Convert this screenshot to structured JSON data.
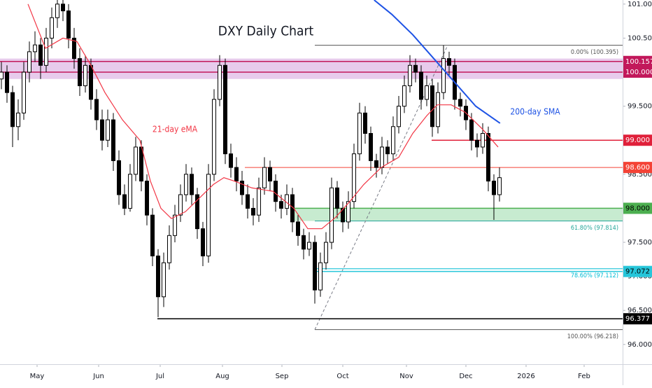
{
  "chart_data": {
    "type": "candlestick",
    "title": "DXY Daily Chart",
    "ylim": [
      95.71,
      101.06
    ],
    "xlim": [
      -0.25,
      111
    ],
    "yticks": [
      {
        "value": 101,
        "label": "101.000"
      },
      {
        "value": 100.5,
        "label": "100.500"
      },
      {
        "value": 99.5,
        "label": "99.500"
      },
      {
        "value": 98.5,
        "label": "98.500"
      },
      {
        "value": 97.5,
        "label": "97.500"
      },
      {
        "value": 97,
        "label": "97.000"
      },
      {
        "value": 96.5,
        "label": "96.500"
      },
      {
        "value": 96,
        "label": "96.000"
      }
    ],
    "xticks": [
      {
        "value": 6.375,
        "label": "May"
      },
      {
        "value": 17.375,
        "label": "Jun"
      },
      {
        "value": 28.375,
        "label": "Jul"
      },
      {
        "value": 39.5,
        "label": "Aug"
      },
      {
        "value": 50.125,
        "label": "Sep"
      },
      {
        "value": 61,
        "label": "Oct"
      },
      {
        "value": 72.375,
        "label": "Nov"
      },
      {
        "value": 83,
        "label": "Dec"
      },
      {
        "value": 93.75,
        "label": "2026"
      },
      {
        "value": 104.125,
        "label": "Feb"
      }
    ],
    "grid": false,
    "up_color": "#ffffff",
    "down_color": "#000000",
    "candles": [
      [
        99.9,
        100.15,
        99.75,
        100.0
      ],
      [
        100.0,
        100.1,
        99.55,
        99.7
      ],
      [
        99.7,
        99.8,
        98.9,
        99.2
      ],
      [
        99.2,
        99.6,
        99.0,
        99.4
      ],
      [
        99.4,
        100.15,
        99.3,
        100.0
      ],
      [
        100.0,
        100.45,
        99.85,
        100.3
      ],
      [
        100.3,
        100.6,
        100.15,
        100.4
      ],
      [
        100.4,
        100.5,
        99.9,
        100.1
      ],
      [
        100.1,
        100.65,
        100.0,
        100.5
      ],
      [
        100.5,
        100.95,
        100.35,
        100.8
      ],
      [
        100.8,
        101.2,
        100.65,
        101.0
      ],
      [
        101.0,
        101.1,
        100.75,
        100.9
      ],
      [
        100.9,
        101.0,
        100.35,
        100.5
      ],
      [
        100.5,
        100.65,
        100.05,
        100.2
      ],
      [
        100.2,
        100.35,
        99.65,
        99.8
      ],
      [
        99.8,
        100.25,
        99.7,
        100.1
      ],
      [
        100.1,
        100.2,
        99.45,
        99.6
      ],
      [
        99.6,
        99.75,
        99.15,
        99.3
      ],
      [
        99.3,
        99.45,
        98.85,
        99.0
      ],
      [
        99.0,
        99.45,
        98.9,
        99.3
      ],
      [
        99.3,
        99.4,
        98.55,
        98.7
      ],
      [
        98.7,
        98.85,
        98.05,
        98.2
      ],
      [
        98.2,
        98.35,
        97.9,
        98.0
      ],
      [
        98.0,
        98.65,
        97.95,
        98.5
      ],
      [
        98.5,
        99.05,
        98.4,
        98.9
      ],
      [
        98.9,
        99.0,
        98.25,
        98.4
      ],
      [
        98.4,
        98.5,
        97.75,
        97.9
      ],
      [
        97.9,
        98.0,
        97.15,
        97.3
      ],
      [
        97.3,
        97.4,
        96.4,
        96.7
      ],
      [
        96.7,
        97.35,
        96.55,
        97.2
      ],
      [
        97.2,
        97.75,
        97.1,
        97.6
      ],
      [
        97.6,
        98.05,
        97.5,
        97.9
      ],
      [
        97.9,
        98.35,
        97.8,
        98.2
      ],
      [
        98.2,
        98.65,
        98.1,
        98.5
      ],
      [
        98.5,
        98.6,
        98.05,
        98.2
      ],
      [
        98.2,
        98.3,
        97.55,
        97.7
      ],
      [
        97.7,
        97.8,
        97.15,
        97.3
      ],
      [
        97.3,
        98.65,
        97.2,
        98.5
      ],
      [
        98.5,
        99.75,
        98.4,
        99.6
      ],
      [
        99.6,
        100.25,
        99.5,
        100.1
      ],
      [
        100.1,
        100.2,
        98.65,
        98.8
      ],
      [
        98.8,
        98.95,
        98.45,
        98.6
      ],
      [
        98.6,
        98.75,
        98.25,
        98.4
      ],
      [
        98.4,
        98.55,
        98.05,
        98.2
      ],
      [
        98.2,
        98.35,
        97.85,
        98.0
      ],
      [
        98.0,
        98.15,
        97.75,
        97.9
      ],
      [
        97.9,
        98.45,
        97.8,
        98.3
      ],
      [
        98.3,
        98.75,
        98.2,
        98.6
      ],
      [
        98.6,
        98.7,
        98.25,
        98.4
      ],
      [
        98.4,
        98.5,
        97.95,
        98.1
      ],
      [
        98.1,
        98.2,
        97.85,
        98.0
      ],
      [
        98.0,
        98.35,
        97.9,
        98.2
      ],
      [
        98.2,
        98.3,
        97.65,
        97.8
      ],
      [
        97.8,
        97.9,
        97.45,
        97.6
      ],
      [
        97.6,
        97.7,
        97.25,
        97.4
      ],
      [
        97.4,
        97.65,
        97.3,
        97.5
      ],
      [
        97.5,
        97.6,
        96.6,
        96.8
      ],
      [
        96.8,
        97.35,
        96.7,
        97.2
      ],
      [
        97.2,
        97.65,
        97.1,
        97.5
      ],
      [
        97.5,
        98.45,
        97.4,
        98.3
      ],
      [
        98.3,
        98.4,
        97.85,
        98.0
      ],
      [
        98.0,
        98.1,
        97.65,
        97.8
      ],
      [
        97.8,
        98.25,
        97.7,
        98.1
      ],
      [
        98.1,
        98.95,
        98.0,
        98.8
      ],
      [
        98.8,
        99.55,
        98.7,
        99.4
      ],
      [
        99.4,
        99.5,
        98.95,
        99.1
      ],
      [
        99.1,
        99.2,
        98.55,
        98.7
      ],
      [
        98.7,
        98.8,
        98.45,
        98.6
      ],
      [
        98.6,
        99.05,
        98.5,
        98.9
      ],
      [
        98.9,
        99.0,
        98.65,
        98.8
      ],
      [
        98.8,
        99.35,
        98.7,
        99.2
      ],
      [
        99.2,
        99.65,
        99.1,
        99.5
      ],
      [
        99.5,
        99.95,
        99.4,
        99.8
      ],
      [
        99.8,
        100.25,
        99.7,
        100.1
      ],
      [
        100.1,
        100.2,
        99.85,
        100.0
      ],
      [
        100.0,
        100.1,
        99.45,
        99.6
      ],
      [
        99.6,
        99.95,
        99.5,
        99.8
      ],
      [
        99.8,
        99.9,
        99.05,
        99.2
      ],
      [
        99.2,
        99.85,
        99.1,
        99.7
      ],
      [
        99.7,
        100.395,
        99.6,
        100.2
      ],
      [
        100.2,
        100.3,
        99.95,
        100.1
      ],
      [
        100.1,
        100.2,
        99.45,
        99.6
      ],
      [
        99.6,
        99.7,
        99.35,
        99.5
      ],
      [
        99.5,
        99.6,
        99.15,
        99.3
      ],
      [
        99.3,
        99.4,
        98.85,
        99.0
      ],
      [
        99.0,
        99.1,
        98.75,
        98.9
      ],
      [
        98.9,
        99.25,
        98.8,
        99.1
      ],
      [
        99.1,
        99.2,
        98.25,
        98.4
      ],
      [
        98.4,
        98.5,
        97.83,
        98.2
      ],
      [
        98.2,
        98.6,
        98.1,
        98.45
      ]
    ],
    "series": [
      {
        "name": "21-day eMA",
        "color": "#f23645",
        "x": [
          4.75,
          7.875,
          11,
          13.5,
          16,
          18.5,
          21.625,
          24.75,
          26.625,
          28.5,
          30.375,
          32.875,
          35.375,
          37.875,
          39.75,
          41.625,
          44.75,
          48.5,
          52.25,
          54.75,
          57.25,
          59.75,
          62.25,
          64.75,
          67.875,
          71,
          73.5,
          76,
          77.875,
          80.375,
          82.875,
          86,
          88.75
        ],
        "values": [
          101.0,
          100.35,
          100.5,
          100.45,
          100.1,
          99.7,
          99.3,
          99.0,
          98.4,
          98.0,
          97.85,
          97.95,
          98.15,
          98.35,
          98.45,
          98.4,
          98.3,
          98.25,
          98.0,
          97.7,
          97.7,
          97.87,
          98.1,
          98.35,
          98.6,
          98.75,
          99.1,
          99.36,
          99.52,
          99.52,
          99.41,
          99.16,
          98.9
        ]
      },
      {
        "name": "200-day SMA",
        "color": "#1e53e5",
        "x": [
          66.6,
          69.75,
          73.5,
          77.25,
          81,
          84.75,
          89.1
        ],
        "values": [
          101.06,
          100.85,
          100.55,
          100.2,
          99.85,
          99.5,
          99.25
        ]
      }
    ],
    "zones": [
      {
        "low": 99.9,
        "high": 100.2,
        "color": "#e1bee7"
      },
      {
        "low": 97.814,
        "high": 98.0,
        "color": "#b9e6c4"
      }
    ],
    "levels": [
      {
        "value": 100.157,
        "color": "#c2185b",
        "text_color": "#ffffff"
      },
      {
        "value": {
          "value": 100,
          "label": "100.000"
        },
        "color": "#c2185b",
        "text_color": "#ffffff"
      },
      {
        "value": {
          "value": 99,
          "label": "99.000"
        },
        "color": "#e0203a",
        "text_color": "#ffffff"
      },
      {
        "value": {
          "value": 98.6,
          "label": "98.600"
        },
        "color": "#f44336",
        "text_color": "#ffffff"
      },
      {
        "value": {
          "value": 98,
          "label": "98.000"
        },
        "color": "#4caf50",
        "text_color": "#000000"
      },
      {
        "value": 97.072,
        "color": "#26c6da",
        "text_color": "#000000"
      },
      {
        "value": 96.377,
        "color": "#000000",
        "text_color": "#ffffff"
      }
    ],
    "fibonacci": [
      {
        "value": 100.395,
        "label": "0.00% (100.395)",
        "color": "#555555"
      },
      {
        "value": 97.814,
        "label": "61.80% (97.814)",
        "color": "#26a69a"
      },
      {
        "value": 97.112,
        "label": "78.60% (97.112)",
        "color": "#00bcd4"
      },
      {
        "value": 96.218,
        "label": "100.00% (96.218)",
        "color": "#555555"
      }
    ],
    "annotations": [
      "21-day eMA",
      "200-day SMA"
    ]
  }
}
